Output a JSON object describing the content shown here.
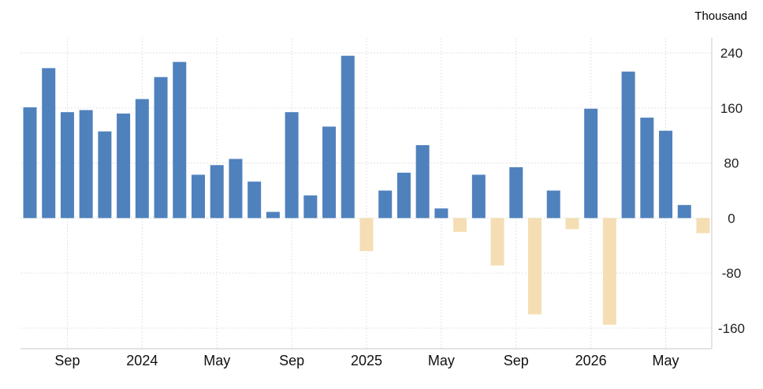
{
  "chart_data": {
    "type": "bar",
    "unit_label": "Thousand",
    "ylim": [
      -190,
      262
    ],
    "y_ticks": [
      240,
      160,
      80,
      0,
      -80,
      -160
    ],
    "grid": true,
    "x_tick_labels": [
      {
        "label": "Sep",
        "index": 2
      },
      {
        "label": "2024",
        "index": 6
      },
      {
        "label": "May",
        "index": 10
      },
      {
        "label": "Sep",
        "index": 14
      },
      {
        "label": "2025",
        "index": 18
      },
      {
        "label": "May",
        "index": 22
      },
      {
        "label": "Sep",
        "index": 26
      },
      {
        "label": "2026",
        "index": 30
      },
      {
        "label": "May",
        "index": 34
      }
    ],
    "values": [
      161,
      218,
      154,
      157,
      126,
      152,
      173,
      205,
      227,
      63,
      77,
      86,
      53,
      9,
      154,
      33,
      133,
      236,
      -48,
      40,
      66,
      106,
      14,
      -20,
      63,
      -69,
      74,
      -140,
      40,
      -16,
      159,
      -155,
      213,
      146,
      127,
      19,
      -22
    ],
    "colors": {
      "positive": "#4f81bd",
      "negative": "#f5deb3"
    }
  }
}
